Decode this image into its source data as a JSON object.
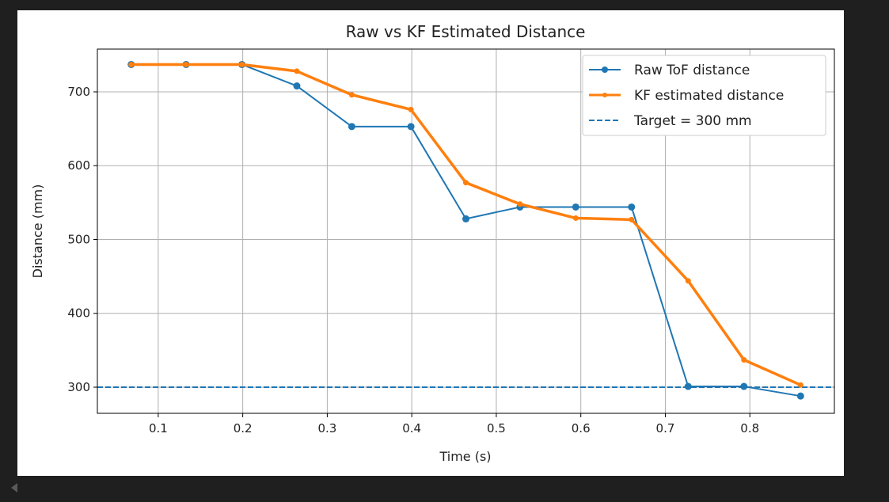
{
  "chart_data": {
    "type": "line",
    "title": "Raw vs KF Estimated Distance",
    "xlabel": "Time (s)",
    "ylabel": "Distance (mm)",
    "xlim": [
      0.028,
      0.9
    ],
    "ylim": [
      264.6,
      757.9
    ],
    "xticks": [
      0.1,
      0.2,
      0.3,
      0.4,
      0.5,
      0.6,
      0.7,
      0.8
    ],
    "xtick_labels": [
      "0.1",
      "0.2",
      "0.3",
      "0.4",
      "0.5",
      "0.6",
      "0.7",
      "0.8"
    ],
    "yticks": [
      300,
      400,
      500,
      600,
      700
    ],
    "ytick_labels": [
      "300",
      "400",
      "500",
      "600",
      "700"
    ],
    "grid": true,
    "legend_position": "top-right",
    "x": [
      0.068,
      0.133,
      0.199,
      0.264,
      0.329,
      0.399,
      0.464,
      0.528,
      0.594,
      0.66,
      0.727,
      0.793,
      0.86
    ],
    "series": [
      {
        "name": "Raw ToF distance",
        "color": "#1f77b4",
        "style": "solid-marker",
        "values": [
          737,
          737,
          737,
          708,
          653,
          653,
          528,
          544,
          544,
          544,
          301,
          301,
          288
        ]
      },
      {
        "name": "KF estimated distance",
        "color": "#ff7f0e",
        "style": "thick-marker",
        "values": [
          737,
          737,
          737,
          728,
          696,
          676,
          577,
          548,
          529,
          527,
          444,
          337,
          303
        ]
      }
    ],
    "hlines": [
      {
        "name": "Target = 300 mm",
        "y": 300,
        "color": "#1f77b4",
        "style": "dashed"
      }
    ]
  }
}
